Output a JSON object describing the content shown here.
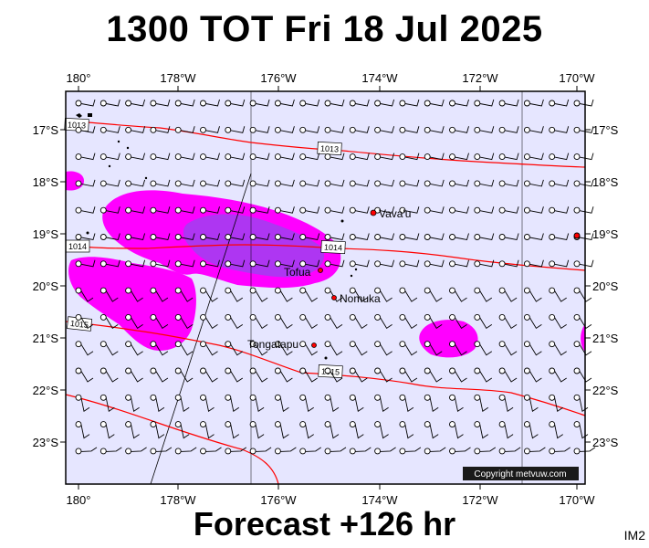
{
  "title": "1300 TOT Fri 18 Jul 2025",
  "subtitle": "Forecast +126 hr",
  "image_id": "IM2",
  "copyright": "Copyright metvuw.com",
  "colors": {
    "ocean": "#e6e6ff",
    "precip_light": "#ff00ff",
    "precip_heavy": "#9933ff",
    "isobar": "#ff0000",
    "frame": "#000000",
    "island_dot": "#ff0000"
  },
  "lon_labels": [
    "180°",
    "178°W",
    "176°W",
    "174°W",
    "172°W",
    "170°W"
  ],
  "lat_labels": [
    "17°S",
    "18°S",
    "19°S",
    "20°S",
    "21°S",
    "22°S",
    "23°S"
  ],
  "isobars": [
    {
      "label": "1013",
      "pressure_hpa": 1013
    },
    {
      "label": "1013",
      "pressure_hpa": 1013
    },
    {
      "label": "1014",
      "pressure_hpa": 1014
    },
    {
      "label": "1014",
      "pressure_hpa": 1014
    },
    {
      "label": "1015",
      "pressure_hpa": 1015
    },
    {
      "label": "1015",
      "pressure_hpa": 1015
    }
  ],
  "places": [
    {
      "name": "Vava'u",
      "lon": -174.0,
      "lat": -18.65
    },
    {
      "name": "Tofua",
      "lon": -175.05,
      "lat": -19.75
    },
    {
      "name": "Nomuka",
      "lon": -174.8,
      "lat": -20.25
    },
    {
      "name": "Tongatapu",
      "lon": -175.2,
      "lat": -21.15
    }
  ],
  "map_extent": {
    "lon_min": 180.3,
    "lon_max": 190.2,
    "lat_max": -16.4,
    "lat_min": -23.6
  }
}
